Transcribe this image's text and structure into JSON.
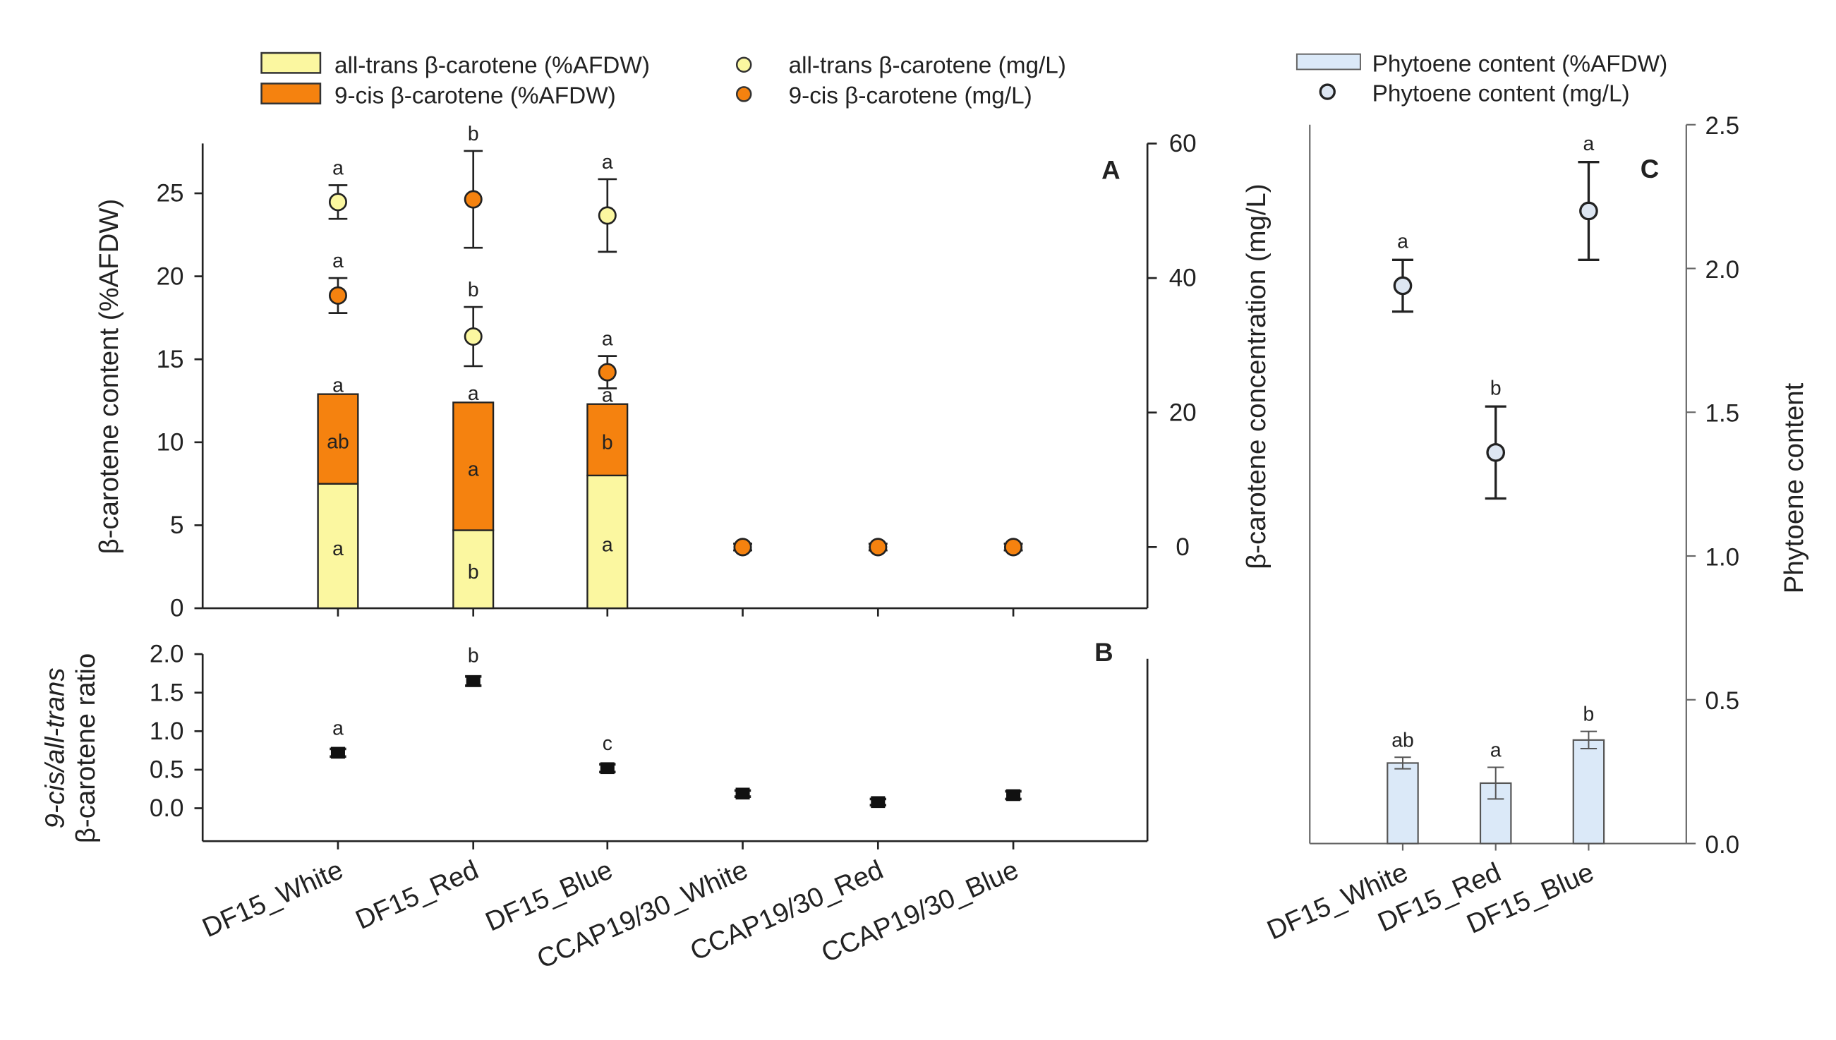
{
  "colors": {
    "all_trans": "#fbf7a0",
    "nine_cis": "#f5820f",
    "phytoene_bar": "#dbe9f8",
    "phytoene_pt": "#dde6f2",
    "axis": "#222222"
  },
  "legend": {
    "a1": "all-trans β-carotene (%AFDW)",
    "a2": "9-cis β-carotene (%AFDW)",
    "a3": "all-trans β-carotene (mg/L)",
    "a4": "9-cis β-carotene (mg/L)",
    "c1": "Phytoene content (%AFDW)",
    "c2": "Phytoene content (mg/L)"
  },
  "chart_data": [
    {
      "panel": "A",
      "type": "bar",
      "categories": [
        "DF15_White",
        "DF15_Red",
        "DF15_Blue",
        "CCAP19/30_White",
        "CCAP19/30_Red",
        "CCAP19/30_Blue"
      ],
      "ylabel": "β-carotene content (%AFDW)",
      "ylabel_right": "β-carotene concentration (mg/L)",
      "ylim": [
        0,
        28
      ],
      "yticks": [
        0,
        5,
        10,
        15,
        20,
        25
      ],
      "ylim_right": [
        -9.1,
        60
      ],
      "yticks_right": [
        0,
        20,
        40,
        60
      ],
      "stacked_bars": [
        {
          "name": "all-trans β-carotene (%AFDW)",
          "values": [
            7.5,
            4.7,
            8.0,
            0,
            0,
            0
          ],
          "letters": [
            "a",
            "b",
            "a",
            "",
            "",
            ""
          ]
        },
        {
          "name": "9-cis β-carotene (%AFDW)",
          "values": [
            5.4,
            7.7,
            4.3,
            0,
            0,
            0
          ],
          "letters": [
            "ab",
            "a",
            "b",
            "",
            "",
            ""
          ],
          "top_letters": [
            "a",
            "a",
            "a",
            "",
            "",
            ""
          ]
        }
      ],
      "points": [
        {
          "name": "all-trans β-carotene (mg/L)",
          "axis": "right",
          "values": [
            51.3,
            31.3,
            49.3,
            0,
            0,
            0
          ],
          "err": [
            2.5,
            4.4,
            5.4,
            0.5,
            0.5,
            0.5
          ],
          "letters": [
            "a",
            "b",
            "a",
            "",
            "",
            ""
          ]
        },
        {
          "name": "9-cis β-carotene (mg/L)",
          "axis": "right",
          "values": [
            37.4,
            51.7,
            26.0,
            0,
            0,
            0
          ],
          "err": [
            2.6,
            7.2,
            2.4,
            0.5,
            0.5,
            0.5
          ],
          "letters": [
            "a",
            "b",
            "a",
            "",
            "",
            ""
          ]
        }
      ]
    },
    {
      "panel": "B",
      "type": "scatter",
      "ylabel_line1": "9-cis/all-trans",
      "ylabel_line2": "β-carotene ratio",
      "ylim": [
        -0.43,
        2.1
      ],
      "yticks": [
        "0.0",
        "0.5",
        "1.0",
        "1.5",
        "2.0"
      ],
      "values": [
        0.72,
        1.65,
        0.52,
        0.19,
        0.08,
        0.17
      ],
      "err": [
        0.05,
        0.06,
        0.05,
        0.04,
        0.04,
        0.05
      ],
      "letters": [
        "a",
        "b",
        "c",
        "",
        "",
        ""
      ]
    },
    {
      "panel": "C",
      "type": "bar",
      "categories": [
        "DF15_White",
        "DF15_Red",
        "DF15_Blue"
      ],
      "ylabel_right": "Phytoene content",
      "ylim": [
        0,
        2.5
      ],
      "yticks": [
        "0.0",
        "0.5",
        "1.0",
        "1.5",
        "2.0",
        "2.5"
      ],
      "bars": {
        "name": "Phytoene content (%AFDW)",
        "values": [
          0.28,
          0.21,
          0.36
        ],
        "err": [
          0.02,
          0.055,
          0.03
        ],
        "letters": [
          "ab",
          "a",
          "b"
        ]
      },
      "points": {
        "name": "Phytoene content (mg/L)",
        "values": [
          1.94,
          1.36,
          2.2
        ],
        "err": [
          0.09,
          0.16,
          0.17
        ],
        "letters": [
          "a",
          "b",
          "a"
        ]
      }
    }
  ]
}
